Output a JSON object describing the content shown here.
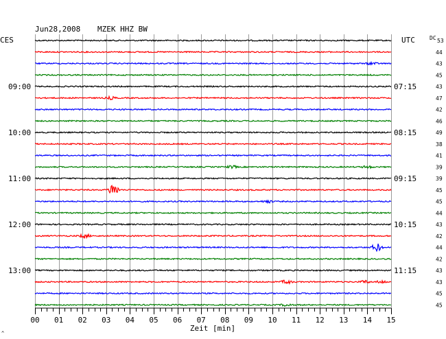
{
  "header": {
    "date": "Jun28,2008",
    "station": "MZEK HHZ BW",
    "left_timezone": "CES",
    "right_timezone": "UTC",
    "dc_label": "DC",
    "corner_mark": "^"
  },
  "colors": {
    "trace_cycle": [
      "#000000",
      "#ff0000",
      "#0000ff",
      "#008000"
    ],
    "grid": "#999999",
    "axis": "#000000"
  },
  "chart_data": {
    "type": "line",
    "title": "Jun28,2008   MZEK HHZ BW",
    "xlabel": "Zeit [min]",
    "xlim": [
      0,
      15
    ],
    "x_ticks": [
      "00",
      "01",
      "02",
      "03",
      "04",
      "05",
      "06",
      "07",
      "08",
      "09",
      "10",
      "11",
      "12",
      "13",
      "14",
      "15"
    ],
    "trace_count": 24,
    "left_time_labels": [
      {
        "trace": 4,
        "label": "09:00"
      },
      {
        "trace": 8,
        "label": "10:00"
      },
      {
        "trace": 12,
        "label": "11:00"
      },
      {
        "trace": 16,
        "label": "12:00"
      },
      {
        "trace": 20,
        "label": "13:00"
      }
    ],
    "right_time_labels": [
      {
        "trace": 4,
        "label": "07:15"
      },
      {
        "trace": 8,
        "label": "08:15"
      },
      {
        "trace": 12,
        "label": "09:15"
      },
      {
        "trace": 16,
        "label": "10:15"
      },
      {
        "trace": 20,
        "label": "11:15"
      }
    ],
    "dc_offsets": [
      53,
      44,
      43,
      45,
      43,
      47,
      42,
      46,
      49,
      38,
      41,
      39,
      39,
      45,
      45,
      44,
      43,
      42,
      44,
      42,
      43,
      43,
      45,
      45
    ],
    "events": [
      {
        "trace": 2,
        "minute": 14.2,
        "amp": 2
      },
      {
        "trace": 5,
        "minute": 3.2,
        "amp": 2
      },
      {
        "trace": 11,
        "minute": 8.3,
        "amp": 2
      },
      {
        "trace": 11,
        "minute": 14.0,
        "amp": 2
      },
      {
        "trace": 13,
        "minute": 3.3,
        "amp": 10
      },
      {
        "trace": 14,
        "minute": 9.8,
        "amp": 2
      },
      {
        "trace": 17,
        "minute": 2.1,
        "amp": 3
      },
      {
        "trace": 18,
        "minute": 14.4,
        "amp": 6
      },
      {
        "trace": 21,
        "minute": 10.6,
        "amp": 3
      },
      {
        "trace": 21,
        "minute": 13.9,
        "amp": 2
      },
      {
        "trace": 21,
        "minute": 14.6,
        "amp": 2
      },
      {
        "trace": 23,
        "minute": 10.6,
        "amp": 2
      }
    ]
  }
}
